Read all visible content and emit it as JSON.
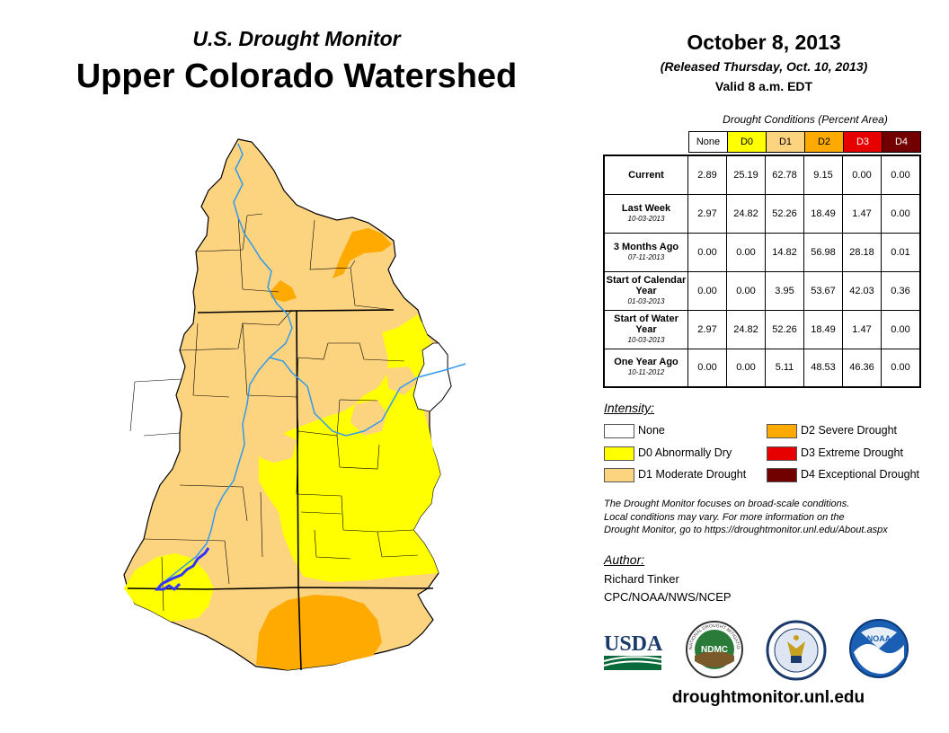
{
  "header": {
    "subtitle": "U.S. Drought Monitor",
    "title": "Upper Colorado Watershed",
    "date": "October 8, 2013",
    "released": "(Released Thursday, Oct. 10, 2013)",
    "valid": "Valid 8 a.m. EDT"
  },
  "table": {
    "caption": "Drought Conditions (Percent Area)",
    "columns": [
      {
        "label": "None",
        "color": "#ffffff",
        "text_color": "#000000"
      },
      {
        "label": "D0",
        "color": "#ffff00",
        "text_color": "#000000"
      },
      {
        "label": "D1",
        "color": "#fcd37f",
        "text_color": "#000000"
      },
      {
        "label": "D2",
        "color": "#ffaa00",
        "text_color": "#000000"
      },
      {
        "label": "D3",
        "color": "#e60000",
        "text_color": "#ffffff"
      },
      {
        "label": "D4",
        "color": "#730000",
        "text_color": "#ffffff"
      }
    ],
    "rows": [
      {
        "label": "Current",
        "date": "",
        "values": [
          "2.89",
          "25.19",
          "62.78",
          "9.15",
          "0.00",
          "0.00"
        ]
      },
      {
        "label": "Last Week",
        "date": "10-03-2013",
        "values": [
          "2.97",
          "24.82",
          "52.26",
          "18.49",
          "1.47",
          "0.00"
        ]
      },
      {
        "label": "3 Months Ago",
        "date": "07-11-2013",
        "values": [
          "0.00",
          "0.00",
          "14.82",
          "56.98",
          "28.18",
          "0.01"
        ]
      },
      {
        "label": "Start of Calendar Year",
        "date": "01-03-2013",
        "values": [
          "0.00",
          "0.00",
          "3.95",
          "53.67",
          "42.03",
          "0.36"
        ]
      },
      {
        "label": "Start of Water Year",
        "date": "10-03-2013",
        "values": [
          "2.97",
          "24.82",
          "52.26",
          "18.49",
          "1.47",
          "0.00"
        ]
      },
      {
        "label": "One Year Ago",
        "date": "10-11-2012",
        "values": [
          "0.00",
          "0.00",
          "5.11",
          "48.53",
          "46.36",
          "0.00"
        ]
      }
    ]
  },
  "legend": {
    "title": "Intensity:",
    "items": [
      {
        "label": "None",
        "color": "#ffffff"
      },
      {
        "label": "D0 Abnormally Dry",
        "color": "#ffff00"
      },
      {
        "label": "D1 Moderate Drought",
        "color": "#fcd37f"
      },
      {
        "label": "D2 Severe Drought",
        "color": "#ffaa00"
      },
      {
        "label": "D3 Extreme Drought",
        "color": "#e60000"
      },
      {
        "label": "D4 Exceptional Drought",
        "color": "#730000"
      }
    ]
  },
  "note": {
    "line1": "The Drought Monitor focuses on broad-scale conditions.",
    "line2": "Local conditions may vary. For more information on the",
    "line3": "Drought Monitor, go to https://droughtmonitor.unl.edu/About.aspx"
  },
  "author": {
    "title": "Author:",
    "name": "Richard Tinker",
    "org": "CPC/NOAA/NWS/NCEP"
  },
  "logos": {
    "usda": "USDA",
    "ndmc": "NDMC",
    "noaa": "NOAA",
    "ndmc_ring": "NATIONAL DROUGHT MITIGATION CENTER"
  },
  "website": "droughtmonitor.unl.edu",
  "map_colors": {
    "none": "#ffffff",
    "d0": "#ffff00",
    "d1": "#fcd37f",
    "d2": "#ffaa00",
    "river": "#3399ee",
    "lake": "#3333ff",
    "border": "#000000"
  }
}
